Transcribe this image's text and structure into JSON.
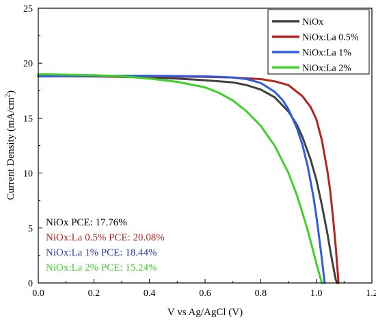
{
  "chart_data": {
    "type": "line",
    "title": "",
    "xlabel": "V vs Ag/AgCl (V)",
    "ylabel_main": "Current Density (mA/cm",
    "ylabel_sup": "2",
    "ylabel_close": ")",
    "xlim": [
      0.0,
      1.2
    ],
    "ylim": [
      0,
      25
    ],
    "xticks": [
      "0.0",
      "0.2",
      "0.4",
      "0.6",
      "0.8",
      "1.0",
      "1.2"
    ],
    "yticks": [
      "0",
      "5",
      "10",
      "15",
      "20",
      "25"
    ],
    "legend_position": "top-right",
    "series": [
      {
        "name": "NiOx",
        "color": "#404040",
        "x": [
          0.0,
          0.1,
          0.2,
          0.3,
          0.4,
          0.5,
          0.6,
          0.7,
          0.75,
          0.8,
          0.85,
          0.9,
          0.93,
          0.95,
          0.98,
          1.0,
          1.02,
          1.04,
          1.05,
          1.06,
          1.07,
          1.075
        ],
        "y": [
          18.9,
          18.85,
          18.8,
          18.75,
          18.7,
          18.6,
          18.45,
          18.25,
          18.0,
          17.6,
          16.9,
          15.6,
          14.4,
          13.3,
          11.2,
          9.4,
          7.1,
          4.5,
          3.0,
          1.6,
          0.3,
          0
        ]
      },
      {
        "name": "NiOx:La 0.5%",
        "color": "#b2251f",
        "x": [
          0.0,
          0.2,
          0.4,
          0.6,
          0.7,
          0.8,
          0.85,
          0.9,
          0.95,
          0.98,
          1.0,
          1.02,
          1.04,
          1.05,
          1.06,
          1.07,
          1.075,
          1.08
        ],
        "y": [
          18.8,
          18.8,
          18.8,
          18.75,
          18.7,
          18.55,
          18.35,
          18.0,
          17.0,
          16.0,
          14.9,
          13.0,
          10.2,
          8.4,
          6.0,
          3.3,
          1.6,
          0
        ]
      },
      {
        "name": "NiOx:La 1%",
        "color": "#2f5ce0",
        "x": [
          0.0,
          0.2,
          0.4,
          0.6,
          0.7,
          0.75,
          0.8,
          0.85,
          0.88,
          0.9,
          0.93,
          0.95,
          0.97,
          0.99,
          1.0,
          1.01,
          1.02,
          1.03
        ],
        "y": [
          18.8,
          18.85,
          18.85,
          18.8,
          18.7,
          18.55,
          18.2,
          17.4,
          16.6,
          15.8,
          14.1,
          12.6,
          10.5,
          7.8,
          6.1,
          4.2,
          2.2,
          0
        ]
      },
      {
        "name": "NiOx:La 2%",
        "color": "#3fd12a",
        "x": [
          0.0,
          0.1,
          0.2,
          0.3,
          0.4,
          0.5,
          0.6,
          0.65,
          0.7,
          0.75,
          0.8,
          0.85,
          0.9,
          0.93,
          0.95,
          0.97,
          0.99,
          1.0,
          1.01,
          1.02
        ],
        "y": [
          19.0,
          18.95,
          18.9,
          18.8,
          18.6,
          18.3,
          17.8,
          17.3,
          16.6,
          15.6,
          14.3,
          12.5,
          10.0,
          8.0,
          6.4,
          4.7,
          2.8,
          1.8,
          0.9,
          0
        ]
      }
    ],
    "annotations": [
      {
        "text": "NiOx PCE: 17.76%",
        "color": "#000000"
      },
      {
        "text": "NiOx:La 0.5% PCE: 20.08%",
        "color": "#b2251f"
      },
      {
        "text": "NiOx:La 1% PCE: 18.44%",
        "color": "#2f3ac0"
      },
      {
        "text": "NiOx:La 2% PCE: 15.24%",
        "color": "#3fd12a"
      }
    ]
  }
}
